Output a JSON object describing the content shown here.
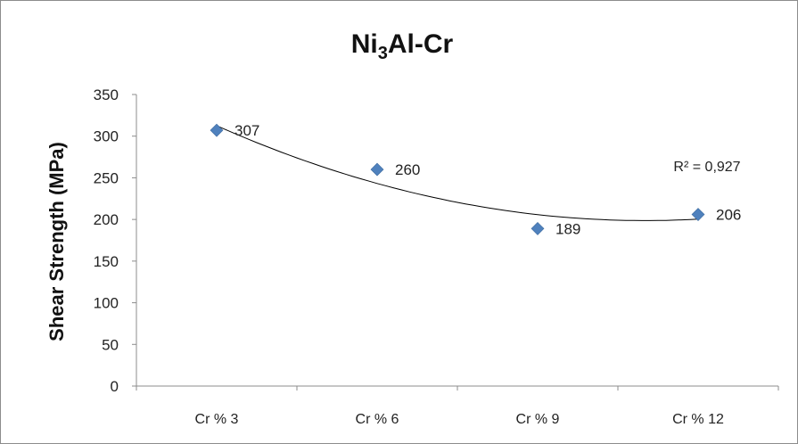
{
  "chart_data": {
    "type": "scatter",
    "title_prefix": "Ni",
    "title_subscript": "3",
    "title_suffix": "Al-Cr",
    "ylabel": "Shear Strength (MPa)",
    "xlabel": "",
    "categories": [
      "Cr % 3",
      "Cr % 6",
      "Cr % 9",
      "Cr % 12"
    ],
    "values": [
      307,
      260,
      189,
      206
    ],
    "data_labels": [
      "307",
      "260",
      "189",
      "206"
    ],
    "ylim": [
      0,
      350
    ],
    "yticks": [
      0,
      50,
      100,
      150,
      200,
      250,
      300,
      350
    ],
    "ytick_labels": [
      "0",
      "50",
      "100",
      "150",
      "200",
      "250",
      "300",
      "350"
    ],
    "grid": false,
    "legend": "none",
    "trendline": {
      "type": "polynomial",
      "order": 2,
      "r_squared_label": "R² = 0,927"
    },
    "marker_color": "#4f81bd",
    "trendline_color": "#000000"
  }
}
